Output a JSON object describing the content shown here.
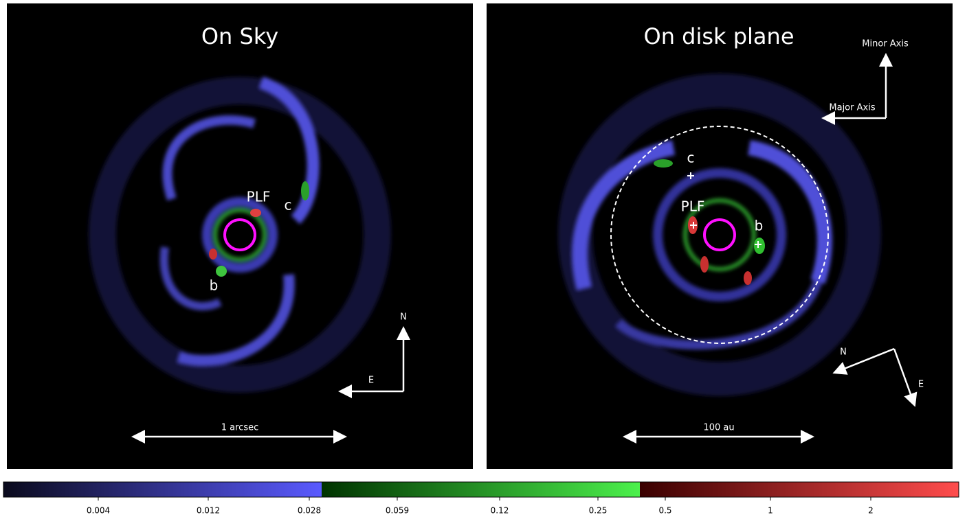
{
  "panels": [
    {
      "title": "On Sky",
      "labels": [
        "PLF",
        "c",
        "b"
      ],
      "compass": [
        "N",
        "E"
      ],
      "scale_bar": "1 arcsec"
    },
    {
      "title": "On disk plane",
      "labels": [
        "PLF",
        "c",
        "b"
      ],
      "axes": [
        "Minor Axis",
        "Major Axis"
      ],
      "compass": [
        "N",
        "E"
      ],
      "scale_bar": "100 au"
    }
  ],
  "colorbar": {
    "ticks": [
      "0.004",
      "0.012",
      "0.028",
      "0.059",
      "0.12",
      "0.25",
      "0.5",
      "1",
      "2"
    ]
  }
}
